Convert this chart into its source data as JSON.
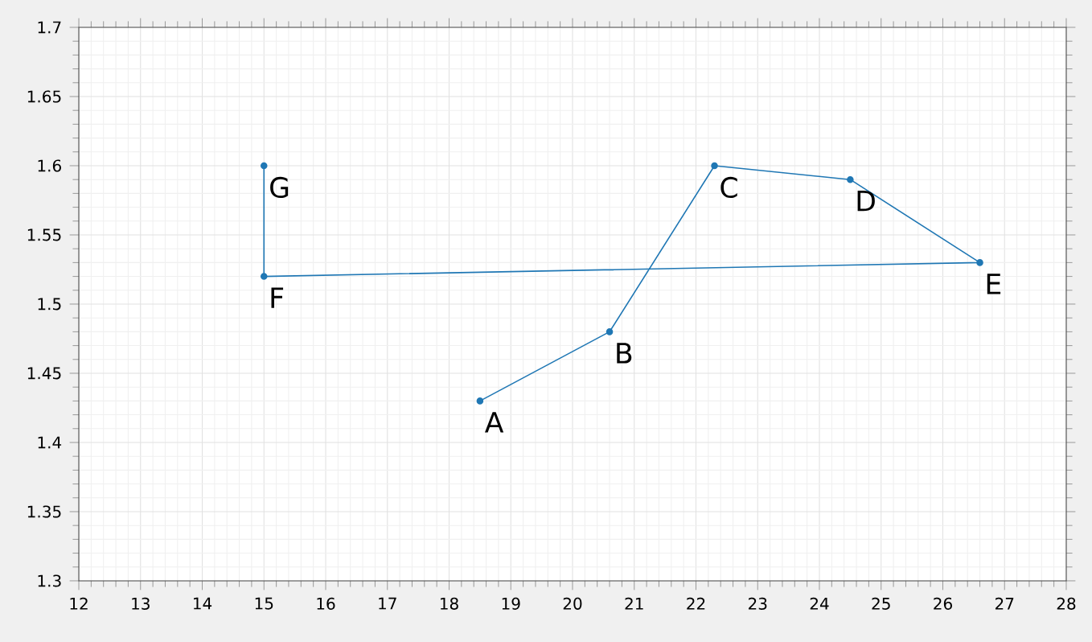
{
  "chart_data": {
    "type": "line",
    "x": [
      18.5,
      20.6,
      22.3,
      24.5,
      26.6,
      15,
      15
    ],
    "series": [
      {
        "color": "#1f77b4",
        "values": [
          1.43,
          1.48,
          1.6,
          1.59,
          1.53,
          1.52,
          1.6
        ]
      }
    ],
    "marker": "circle",
    "grid": true,
    "xlim": [
      12,
      28
    ],
    "xticks": [
      12,
      13,
      14,
      15,
      16,
      17,
      18,
      19,
      20,
      21,
      22,
      23,
      24,
      25,
      26,
      27,
      28
    ],
    "ylim": [
      1.3,
      1.7
    ],
    "yticks": [
      1.3,
      1.35,
      1.4,
      1.45,
      1.5,
      1.55,
      1.6,
      1.65,
      1.7
    ],
    "annotations": [
      {
        "text": "A",
        "x": 18.5,
        "y": 1.43
      },
      {
        "text": "B",
        "x": 20.6,
        "y": 1.48
      },
      {
        "text": "C",
        "x": 22.3,
        "y": 1.6
      },
      {
        "text": "D",
        "x": 24.5,
        "y": 1.59
      },
      {
        "text": "E",
        "x": 26.6,
        "y": 1.53
      },
      {
        "text": "F",
        "x": 15,
        "y": 1.52
      },
      {
        "text": "G",
        "x": 15,
        "y": 1.6
      }
    ]
  }
}
